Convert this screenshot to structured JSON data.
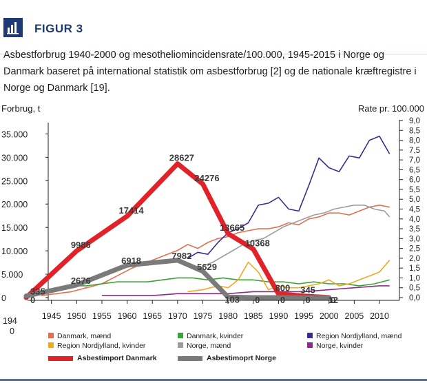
{
  "figure": {
    "label": "FIGUR 3",
    "caption": "Asbestforbrug 1940-2000 og mesotheliomincidensrate/100.000, 1945-2015 i Norge og Danmark baseret på international statistik om asbestforbrug [2] og de nationale kræftregistre i Norge og Danmark [19].",
    "icon": "bar-chart-icon"
  },
  "chart_data": {
    "type": "line",
    "title": "",
    "ylabel_left": "Forbrug, t",
    "ylabel_right": "Rate pr. 100.000",
    "x_range": [
      1940,
      2013
    ],
    "y_left_range": [
      0,
      38000
    ],
    "y_right_range": [
      0,
      9.0
    ],
    "x_ticks": [
      1945,
      1950,
      1955,
      1960,
      1965,
      1970,
      1975,
      1980,
      1985,
      1990,
      1995,
      2000,
      2005,
      2010
    ],
    "x_tick_labels": [
      "1945",
      "1950",
      "1955",
      "1960",
      "1965",
      "1970",
      "1975",
      "1980",
      "1985",
      "1990",
      "1995",
      "2000",
      "2005",
      "2010"
    ],
    "x_start_label": [
      "194",
      "0"
    ],
    "y_left_ticks": [
      0,
      5000,
      10000,
      15000,
      20000,
      25000,
      30000,
      35000
    ],
    "y_left_tick_labels": [
      "0",
      "5.000",
      "10.000",
      "15.000",
      "20.000",
      "25.000",
      "30.000",
      "35.000"
    ],
    "y_right_ticks": [
      0,
      0.5,
      1.0,
      1.5,
      2.0,
      2.5,
      3.0,
      3.5,
      4.0,
      4.5,
      5.0,
      5.5,
      6.0,
      6.5,
      7.0,
      7.5,
      8.0,
      8.5,
      9.0
    ],
    "y_right_tick_labels": [
      "0,0",
      "0,5",
      "1,0",
      "1,5",
      "2,0",
      "2,5",
      "3,0",
      "3,5",
      "4,0",
      "4,5",
      "5,0",
      "5,5",
      "6,0",
      "6,5",
      "7,0",
      "7,5",
      "8,0",
      "8,5",
      "9,0"
    ],
    "grid": false,
    "legend_position": "bottom",
    "legend_rows": [
      [
        {
          "label": "Danmark, mænd",
          "color": "#e0704f",
          "style": "square"
        },
        {
          "label": "Danmark, kvinder",
          "color": "#3aa335",
          "style": "square"
        },
        {
          "label": "Region Nordjylland, mænd",
          "color": "#3a2d8f",
          "style": "square"
        }
      ],
      [
        {
          "label": "Region Nordjylland, kvinder",
          "color": "#f0a81e",
          "style": "square"
        },
        {
          "label": "Norge, mænd",
          "color": "#9c9c9c",
          "style": "square"
        },
        {
          "label": "Norge, kvinder",
          "color": "#8b2a8b",
          "style": "square"
        }
      ],
      [
        {
          "label": "Asbestimport Danmark",
          "color": "#e12228",
          "style": "bar"
        },
        {
          "label": "Asbestimoprt Norge",
          "color": "#7a7a7a",
          "style": "bar"
        }
      ]
    ],
    "import_series": [
      {
        "name": "Asbestimport Danmark",
        "axis": "left",
        "color": "#e12228",
        "points": [
          {
            "x": 1940,
            "y": 0,
            "label": "0"
          },
          {
            "x": 1950,
            "y": 9986,
            "label": "9986"
          },
          {
            "x": 1960,
            "y": 17414,
            "label": "17414"
          },
          {
            "x": 1970,
            "y": 28627,
            "label": "28627"
          },
          {
            "x": 1975,
            "y": 24276,
            "label": "24276"
          },
          {
            "x": 1980,
            "y": 13665,
            "label": "13665"
          },
          {
            "x": 1985,
            "y": 10368,
            "label": "10368"
          },
          {
            "x": 1990,
            "y": 800,
            "label": "800"
          },
          {
            "x": 1995,
            "y": 345,
            "label": "345"
          },
          {
            "x": 2000,
            "y": 12,
            "label": "12"
          }
        ]
      },
      {
        "name": "Asbestimoprt Norge",
        "axis": "left",
        "color": "#7a7a7a",
        "points": [
          {
            "x": 1940,
            "y": 335,
            "label": "335"
          },
          {
            "x": 1950,
            "y": 2676,
            "label": "2676"
          },
          {
            "x": 1960,
            "y": 6918,
            "label": "6918"
          },
          {
            "x": 1970,
            "y": 7982,
            "label": "7982"
          },
          {
            "x": 1975,
            "y": 5629,
            "label": "5629"
          },
          {
            "x": 1980,
            "y": 103,
            "label": "103"
          },
          {
            "x": 1985,
            "y": 0,
            "label": "0"
          },
          {
            "x": 1990,
            "y": 0,
            "label": "0"
          },
          {
            "x": 1995,
            "y": 0,
            "label": "0"
          },
          {
            "x": 2000,
            "y": 0,
            "label": "0"
          }
        ]
      }
    ],
    "rate_series": [
      {
        "name": "Danmark, mænd",
        "axis": "right",
        "color": "#e0704f",
        "x": [
          1943,
          1946,
          1949,
          1952,
          1955,
          1958,
          1961,
          1964,
          1967,
          1970,
          1972,
          1974,
          1976,
          1978,
          1980,
          1982,
          1984,
          1986,
          1988,
          1990,
          1992,
          1994,
          1996,
          1998,
          2000,
          2002,
          2004,
          2006,
          2008,
          2010,
          2012
        ],
        "y": [
          0.1,
          0.2,
          0.3,
          0.5,
          0.7,
          1.1,
          1.5,
          1.8,
          2.1,
          2.4,
          2.7,
          2.5,
          2.8,
          3.0,
          3.1,
          3.3,
          3.4,
          3.5,
          3.5,
          3.6,
          3.8,
          3.7,
          4.0,
          4.1,
          4.3,
          4.3,
          4.2,
          4.4,
          4.6,
          4.7,
          4.6
        ]
      },
      {
        "name": "Danmark, kvinder",
        "axis": "right",
        "color": "#3aa335",
        "x": [
          1943,
          1946,
          1949,
          1952,
          1955,
          1958,
          1961,
          1964,
          1967,
          1970,
          1973,
          1976,
          1979,
          1982,
          1985,
          1988,
          1991,
          1994,
          1997,
          2000,
          2003,
          2006,
          2009,
          2012
        ],
        "y": [
          0.3,
          0.5,
          0.6,
          0.6,
          0.7,
          0.8,
          0.8,
          0.8,
          0.9,
          1.0,
          1.0,
          0.9,
          1.0,
          0.9,
          0.9,
          0.8,
          0.8,
          0.7,
          0.8,
          0.7,
          0.7,
          0.6,
          0.7,
          0.9
        ]
      },
      {
        "name": "Region Nordjylland, mænd",
        "axis": "right",
        "color": "#3a2d8f",
        "x": [
          1972,
          1974,
          1976,
          1978,
          1980,
          1982,
          1984,
          1986,
          1988,
          1990,
          1992,
          1994,
          1996,
          1998,
          2000,
          2002,
          2004,
          2006,
          2008,
          2010,
          2012
        ],
        "y": [
          2.0,
          2.3,
          2.2,
          2.8,
          3.3,
          3.5,
          3.8,
          4.7,
          4.8,
          5.1,
          4.5,
          4.4,
          5.7,
          7.1,
          6.6,
          6.4,
          7.2,
          7.1,
          8.0,
          8.2,
          7.3
        ]
      },
      {
        "name": "Region Nordjylland, kvinder",
        "axis": "right",
        "color": "#f0a81e",
        "x": [
          1972,
          1975,
          1978,
          1980,
          1982,
          1984,
          1986,
          1988,
          1990,
          1992,
          1994,
          1996,
          1998,
          2000,
          2002,
          2004,
          2006,
          2008,
          2010,
          2012
        ],
        "y": [
          0.3,
          0.4,
          0.6,
          0.5,
          0.9,
          1.8,
          1.3,
          0.4,
          0.6,
          0.5,
          0.5,
          0.6,
          0.7,
          0.9,
          0.6,
          0.7,
          0.9,
          1.1,
          1.3,
          1.9
        ]
      },
      {
        "name": "Norge, mænd",
        "axis": "right",
        "color": "#9c9c9c",
        "x": [
          1975,
          1977,
          1979,
          1981,
          1983,
          1985,
          1987,
          1989,
          1991,
          1993,
          1995,
          1997,
          1999,
          2001,
          2003,
          2005,
          2007,
          2009,
          2011,
          2012
        ],
        "y": [
          1.6,
          1.8,
          2.1,
          2.4,
          2.7,
          2.9,
          3.0,
          3.3,
          3.6,
          3.8,
          4.0,
          4.2,
          4.3,
          4.5,
          4.6,
          4.7,
          4.7,
          4.5,
          4.4,
          4.1
        ]
      },
      {
        "name": "Norge, kvinder",
        "axis": "right",
        "color": "#8b2a8b",
        "x": [
          1955,
          1960,
          1965,
          1970,
          1975,
          1980,
          1985,
          1990,
          1995,
          2000,
          2005,
          2010,
          2012
        ],
        "y": [
          0.1,
          0.1,
          0.1,
          0.2,
          0.2,
          0.2,
          0.3,
          0.3,
          0.3,
          0.4,
          0.5,
          0.6,
          0.6
        ]
      }
    ]
  }
}
